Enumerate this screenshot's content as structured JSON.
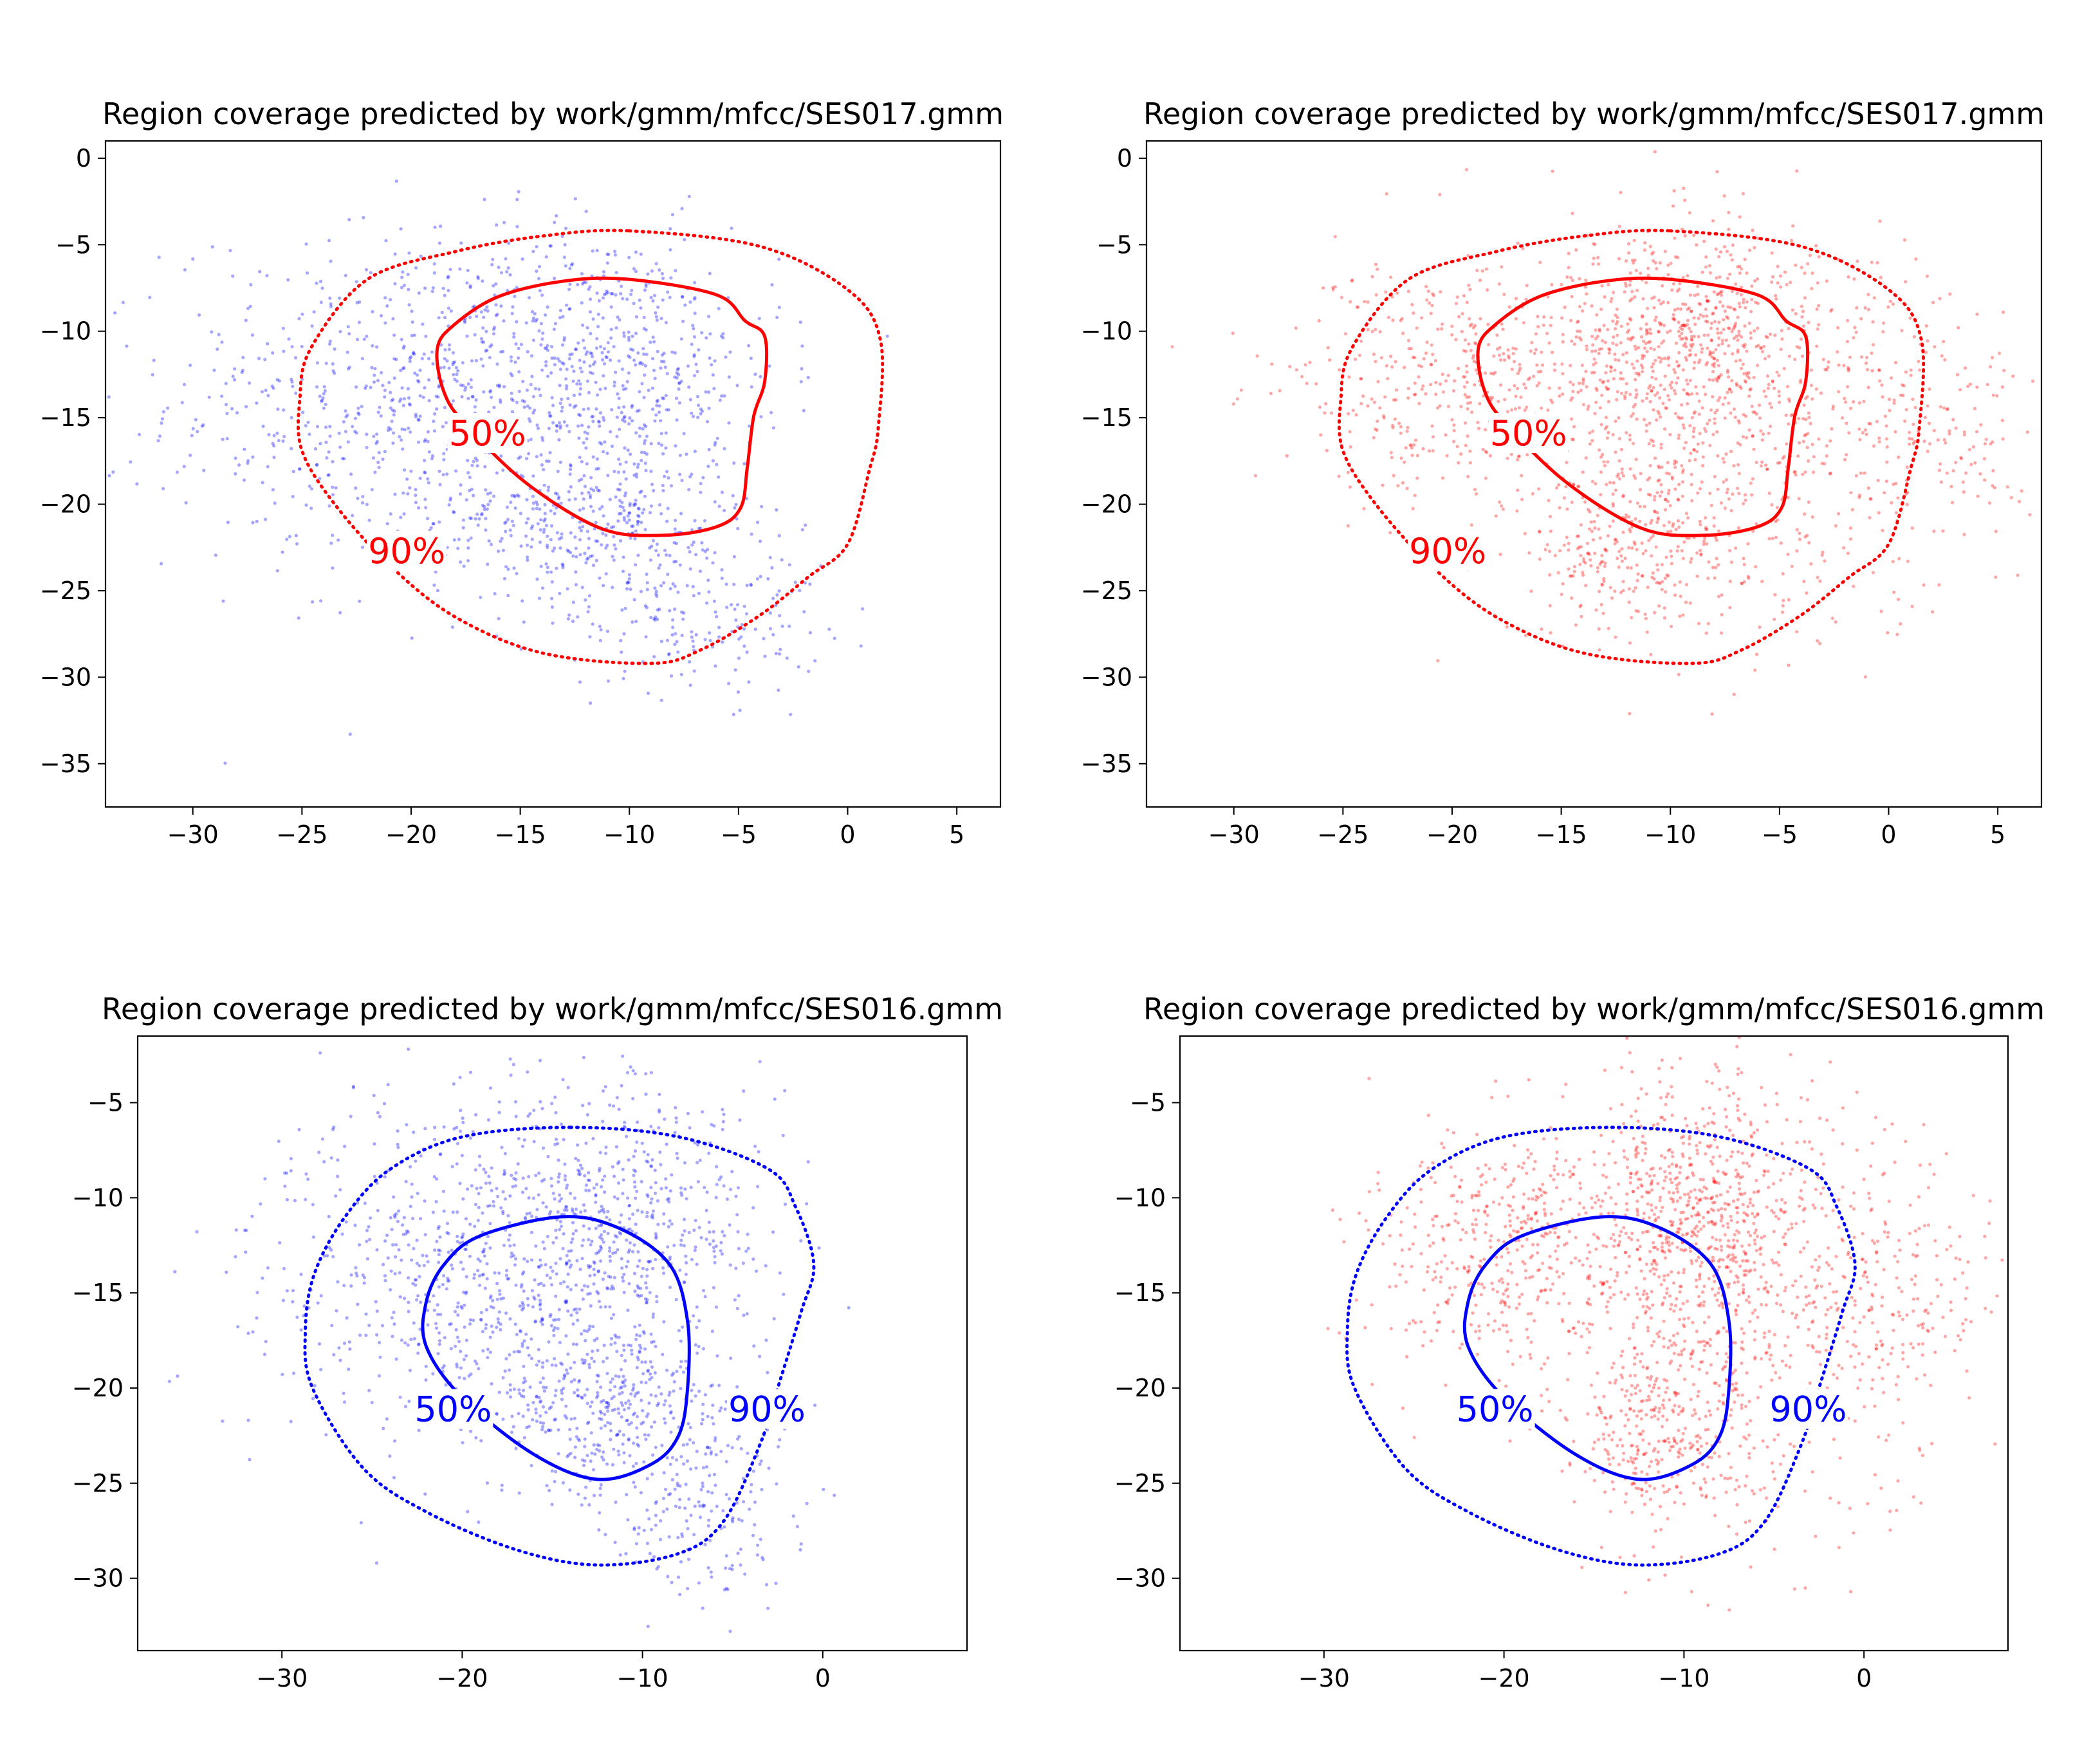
{
  "figure": {
    "description_free": true
  },
  "chart_data": [
    {
      "type": "scatter",
      "title": "Region coverage predicted by work/gmm/mfcc/SES017.gmm",
      "xlim": [
        -34,
        7
      ],
      "ylim": [
        -37.5,
        1
      ],
      "xticks": [
        -30,
        -25,
        -20,
        -15,
        -10,
        -5,
        0,
        5
      ],
      "xtick_labels": [
        "−30",
        "−25",
        "−20",
        "−15",
        "−10",
        "−5",
        "0",
        "5"
      ],
      "yticks": [
        0,
        -5,
        -10,
        -15,
        -20,
        -25,
        -30,
        -35
      ],
      "ytick_labels": [
        "0",
        "−5",
        "−10",
        "−15",
        "−20",
        "−25",
        "−30",
        "−35"
      ],
      "grid": false,
      "points_color": "#0000ff",
      "points_clusters": [
        {
          "cx": -20,
          "cy": -14,
          "sx": 5.5,
          "sy": 5,
          "n": 700
        },
        {
          "cx": -11,
          "cy": -12,
          "sx": 4,
          "sy": 4,
          "n": 550
        },
        {
          "cx": -12,
          "cy": -21,
          "sx": 3.5,
          "sy": 2.5,
          "n": 350
        },
        {
          "cx": -7,
          "cy": -26,
          "sx": 3,
          "sy": 2.5,
          "n": 200
        }
      ],
      "contour_color": "#ff0000",
      "contours": [
        {
          "level_label": "50%",
          "style": "solid",
          "points": [
            [
              -10,
              -7
            ],
            [
              -6,
              -7.9
            ],
            [
              -4.7,
              -9.4
            ],
            [
              -3.8,
              -10.3
            ],
            [
              -3.8,
              -12.9
            ],
            [
              -4.3,
              -14.9
            ],
            [
              -4.6,
              -17.9
            ],
            [
              -4.9,
              -20.2
            ],
            [
              -6,
              -21.3
            ],
            [
              -8.5,
              -21.8
            ],
            [
              -11.3,
              -21.4
            ],
            [
              -14.7,
              -18.8
            ],
            [
              -17.5,
              -15.4
            ],
            [
              -18.5,
              -13.5
            ],
            [
              -18.8,
              -11
            ],
            [
              -18,
              -9.6
            ],
            [
              -16,
              -8
            ],
            [
              -13,
              -7.1
            ]
          ],
          "label_at": [
            -16.5,
            -16
          ]
        },
        {
          "level_label": "90%",
          "style": "dotted",
          "points": [
            [
              -10,
              -4.2
            ],
            [
              -4,
              -5.1
            ],
            [
              0,
              -7.6
            ],
            [
              1.5,
              -10.5
            ],
            [
              1.4,
              -15.6
            ],
            [
              1,
              -18
            ],
            [
              0,
              -22.3
            ],
            [
              -1.8,
              -24.2
            ],
            [
              -4,
              -26.4
            ],
            [
              -6.7,
              -28.4
            ],
            [
              -9,
              -29.2
            ],
            [
              -14,
              -28.6
            ],
            [
              -18,
              -26.5
            ],
            [
              -21,
              -23.5
            ],
            [
              -23.5,
              -20
            ],
            [
              -25,
              -16.9
            ],
            [
              -25.1,
              -14
            ],
            [
              -24.6,
              -11
            ],
            [
              -22,
              -7
            ],
            [
              -18,
              -5.4
            ],
            [
              -14,
              -4.5
            ]
          ],
          "label_at": [
            -20.2,
            -22.8
          ]
        }
      ]
    },
    {
      "type": "scatter",
      "title": "Region coverage predicted by work/gmm/mfcc/SES017.gmm",
      "xlim": [
        -34,
        7
      ],
      "ylim": [
        -37.5,
        1
      ],
      "xticks": [
        -30,
        -25,
        -20,
        -15,
        -10,
        -5,
        0,
        5
      ],
      "xtick_labels": [
        "−30",
        "−25",
        "−20",
        "−15",
        "−10",
        "−5",
        "0",
        "5"
      ],
      "yticks": [
        0,
        -5,
        -10,
        -15,
        -20,
        -25,
        -30,
        -35
      ],
      "ytick_labels": [
        "0",
        "−5",
        "−10",
        "−15",
        "−20",
        "−25",
        "−30",
        "−35"
      ],
      "grid": false,
      "points_color": "#ff0000",
      "points_clusters": [
        {
          "cx": -20,
          "cy": -13,
          "sx": 4,
          "sy": 3.5,
          "n": 450
        },
        {
          "cx": -9.5,
          "cy": -10.5,
          "sx": 3.5,
          "sy": 3.5,
          "n": 650
        },
        {
          "cx": -11.5,
          "cy": -22,
          "sx": 2.5,
          "sy": 2.5,
          "n": 300
        },
        {
          "cx": -6,
          "cy": -17,
          "sx": 5,
          "sy": 6,
          "n": 500
        },
        {
          "cx": 2,
          "cy": -15,
          "sx": 3,
          "sy": 3,
          "n": 150
        }
      ],
      "contour_color": "#ff0000",
      "contours": [
        {
          "level_label": "50%",
          "style": "solid",
          "points": [
            [
              -10,
              -7
            ],
            [
              -6,
              -7.9
            ],
            [
              -4.7,
              -9.4
            ],
            [
              -3.8,
              -10.3
            ],
            [
              -3.8,
              -12.9
            ],
            [
              -4.3,
              -14.9
            ],
            [
              -4.6,
              -17.9
            ],
            [
              -4.9,
              -20.2
            ],
            [
              -6,
              -21.3
            ],
            [
              -8.5,
              -21.8
            ],
            [
              -11.3,
              -21.4
            ],
            [
              -14.7,
              -18.8
            ],
            [
              -17.5,
              -15.4
            ],
            [
              -18.5,
              -13.5
            ],
            [
              -18.8,
              -11
            ],
            [
              -18,
              -9.6
            ],
            [
              -16,
              -8
            ],
            [
              -13,
              -7.1
            ]
          ],
          "label_at": [
            -16.5,
            -16
          ]
        },
        {
          "level_label": "90%",
          "style": "dotted",
          "points": [
            [
              -10,
              -4.2
            ],
            [
              -4,
              -5.1
            ],
            [
              0,
              -7.6
            ],
            [
              1.5,
              -10.5
            ],
            [
              1.4,
              -15.6
            ],
            [
              1,
              -18
            ],
            [
              0,
              -22.3
            ],
            [
              -1.8,
              -24.2
            ],
            [
              -4,
              -26.4
            ],
            [
              -6.7,
              -28.4
            ],
            [
              -9,
              -29.2
            ],
            [
              -14,
              -28.6
            ],
            [
              -18,
              -26.5
            ],
            [
              -21,
              -23.5
            ],
            [
              -23.5,
              -20
            ],
            [
              -25,
              -16.9
            ],
            [
              -25.1,
              -14
            ],
            [
              -24.6,
              -11
            ],
            [
              -22,
              -7
            ],
            [
              -18,
              -5.4
            ],
            [
              -14,
              -4.5
            ]
          ],
          "label_at": [
            -20.2,
            -22.8
          ]
        }
      ]
    },
    {
      "type": "scatter",
      "title": "Region coverage predicted by work/gmm/mfcc/SES016.gmm",
      "xlim": [
        -38,
        8
      ],
      "ylim": [
        -33.8,
        -1.5
      ],
      "xticks": [
        -30,
        -20,
        -10,
        0
      ],
      "xtick_labels": [
        "−30",
        "−20",
        "−10",
        "0"
      ],
      "yticks": [
        -5,
        -10,
        -15,
        -20,
        -25,
        -30
      ],
      "ytick_labels": [
        "−5",
        "−10",
        "−15",
        "−20",
        "−25",
        "−30"
      ],
      "grid": false,
      "points_color": "#0000ff",
      "points_clusters": [
        {
          "cx": -20,
          "cy": -14,
          "sx": 5.5,
          "sy": 5,
          "n": 700
        },
        {
          "cx": -11,
          "cy": -12,
          "sx": 4,
          "sy": 4,
          "n": 550
        },
        {
          "cx": -12,
          "cy": -21,
          "sx": 3.5,
          "sy": 2.5,
          "n": 350
        },
        {
          "cx": -7,
          "cy": -26,
          "sx": 3,
          "sy": 2.5,
          "n": 200
        }
      ],
      "contour_color": "#0000ff",
      "contours": [
        {
          "level_label": "50%",
          "style": "solid",
          "points": [
            [
              -14.5,
              -11
            ],
            [
              -11.3,
              -11.6
            ],
            [
              -8.5,
              -13.5
            ],
            [
              -7.5,
              -16.5
            ],
            [
              -7.5,
              -20
            ],
            [
              -8,
              -22.5
            ],
            [
              -9.5,
              -24
            ],
            [
              -12.5,
              -24.8
            ],
            [
              -16,
              -23.5
            ],
            [
              -20,
              -20.5
            ],
            [
              -22,
              -17.8
            ],
            [
              -22,
              -15.5
            ],
            [
              -21,
              -13.5
            ],
            [
              -19,
              -12
            ]
          ],
          "label_at": [
            -20.5,
            -21.2
          ]
        },
        {
          "level_label": "90%",
          "style": "dotted",
          "points": [
            [
              -14,
              -6.3
            ],
            [
              -8,
              -6.8
            ],
            [
              -3,
              -8.5
            ],
            [
              -1.5,
              -10.5
            ],
            [
              -0.5,
              -13.5
            ],
            [
              -1.2,
              -16
            ],
            [
              -2.5,
              -20
            ],
            [
              -3.5,
              -23
            ],
            [
              -5.5,
              -27
            ],
            [
              -8,
              -28.7
            ],
            [
              -12.5,
              -29.3
            ],
            [
              -17,
              -28.5
            ],
            [
              -22,
              -26.5
            ],
            [
              -25.5,
              -24.2
            ],
            [
              -28.3,
              -20
            ],
            [
              -28.7,
              -17
            ],
            [
              -28.2,
              -14
            ],
            [
              -26.5,
              -11
            ],
            [
              -24,
              -8.5
            ],
            [
              -20,
              -6.8
            ]
          ],
          "label_at": [
            -3.1,
            -21.2
          ]
        }
      ]
    },
    {
      "type": "scatter",
      "title": "Region coverage predicted by work/gmm/mfcc/SES016.gmm",
      "xlim": [
        -38,
        8
      ],
      "ylim": [
        -33.8,
        -1.5
      ],
      "xticks": [
        -30,
        -20,
        -10,
        0
      ],
      "xtick_labels": [
        "−30",
        "−20",
        "−10",
        "0"
      ],
      "yticks": [
        -5,
        -10,
        -15,
        -20,
        -25,
        -30
      ],
      "ytick_labels": [
        "−5",
        "−10",
        "−15",
        "−20",
        "−25",
        "−30"
      ],
      "grid": false,
      "points_color": "#ff0000",
      "points_clusters": [
        {
          "cx": -20,
          "cy": -13,
          "sx": 4,
          "sy": 3.5,
          "n": 450
        },
        {
          "cx": -9.5,
          "cy": -10.5,
          "sx": 3.5,
          "sy": 3.5,
          "n": 650
        },
        {
          "cx": -11.5,
          "cy": -22,
          "sx": 2.5,
          "sy": 2.5,
          "n": 300
        },
        {
          "cx": -6,
          "cy": -17,
          "sx": 5,
          "sy": 6,
          "n": 500
        },
        {
          "cx": 2,
          "cy": -15,
          "sx": 3,
          "sy": 3,
          "n": 150
        }
      ],
      "contour_color": "#0000ff",
      "contours": [
        {
          "level_label": "50%",
          "style": "solid",
          "points": [
            [
              -14.5,
              -11
            ],
            [
              -11.3,
              -11.6
            ],
            [
              -8.5,
              -13.5
            ],
            [
              -7.5,
              -16.5
            ],
            [
              -7.5,
              -20
            ],
            [
              -8,
              -22.5
            ],
            [
              -9.5,
              -24
            ],
            [
              -12.5,
              -24.8
            ],
            [
              -16,
              -23.5
            ],
            [
              -20,
              -20.5
            ],
            [
              -22,
              -17.8
            ],
            [
              -22,
              -15.5
            ],
            [
              -21,
              -13.5
            ],
            [
              -19,
              -12
            ]
          ],
          "label_at": [
            -20.5,
            -21.2
          ]
        },
        {
          "level_label": "90%",
          "style": "dotted",
          "points": [
            [
              -14,
              -6.3
            ],
            [
              -8,
              -6.8
            ],
            [
              -3,
              -8.5
            ],
            [
              -1.5,
              -10.5
            ],
            [
              -0.5,
              -13.5
            ],
            [
              -1.2,
              -16
            ],
            [
              -2.5,
              -20
            ],
            [
              -3.5,
              -23
            ],
            [
              -5.5,
              -27
            ],
            [
              -8,
              -28.7
            ],
            [
              -12.5,
              -29.3
            ],
            [
              -17,
              -28.5
            ],
            [
              -22,
              -26.5
            ],
            [
              -25.5,
              -24.2
            ],
            [
              -28.3,
              -20
            ],
            [
              -28.7,
              -17
            ],
            [
              -28.2,
              -14
            ],
            [
              -26.5,
              -11
            ],
            [
              -24,
              -8.5
            ],
            [
              -20,
              -6.8
            ]
          ],
          "label_at": [
            -3.1,
            -21.2
          ]
        }
      ]
    }
  ]
}
